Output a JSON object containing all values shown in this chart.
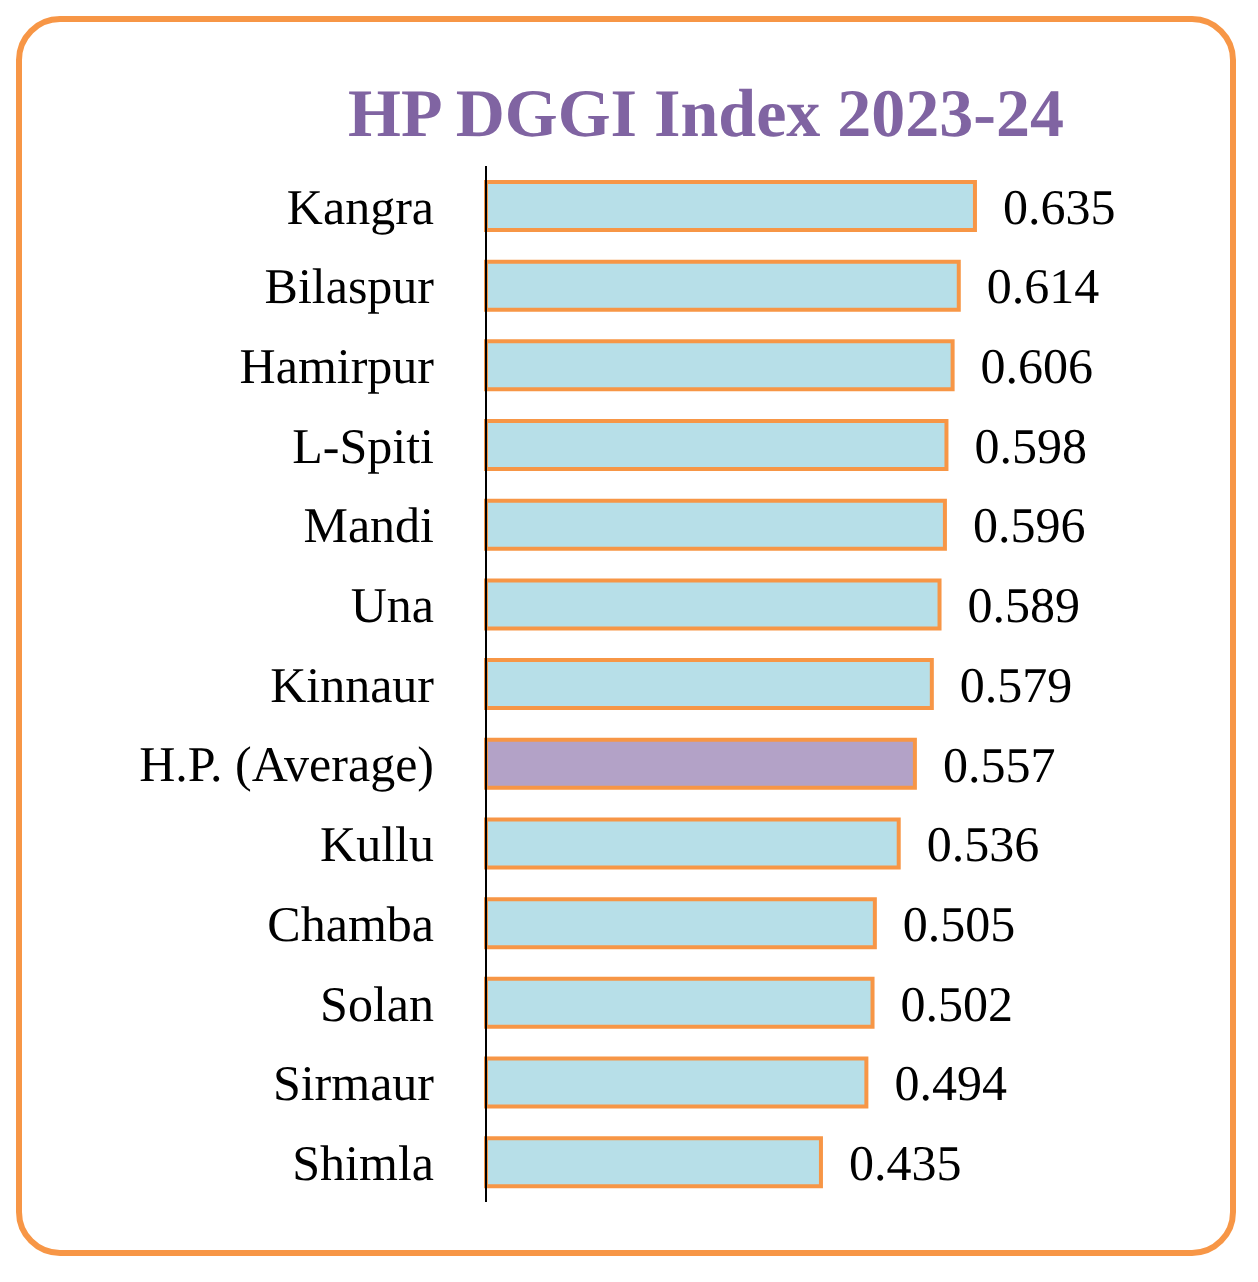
{
  "chart_data": {
    "type": "bar",
    "orientation": "horizontal",
    "title": "HP DGGI Index 2023-24",
    "categories": [
      "Kangra",
      "Bilaspur",
      "Hamirpur",
      "L-Spiti",
      "Mandi",
      "Una",
      "Kinnaur",
      "H.P. (Average)",
      "Kullu",
      "Chamba",
      "Solan",
      "Sirmaur",
      "Shimla"
    ],
    "values": [
      0.635,
      0.614,
      0.606,
      0.598,
      0.596,
      0.589,
      0.579,
      0.557,
      0.536,
      0.505,
      0.502,
      0.494,
      0.435
    ],
    "colors": [
      "#b7dfe8",
      "#b7dfe8",
      "#b7dfe8",
      "#b7dfe8",
      "#b7dfe8",
      "#b7dfe8",
      "#b7dfe8",
      "#b3a2c7",
      "#b7dfe8",
      "#b7dfe8",
      "#b7dfe8",
      "#b7dfe8",
      "#b7dfe8"
    ],
    "tick_labels": "y",
    "data_labels": true
  }
}
